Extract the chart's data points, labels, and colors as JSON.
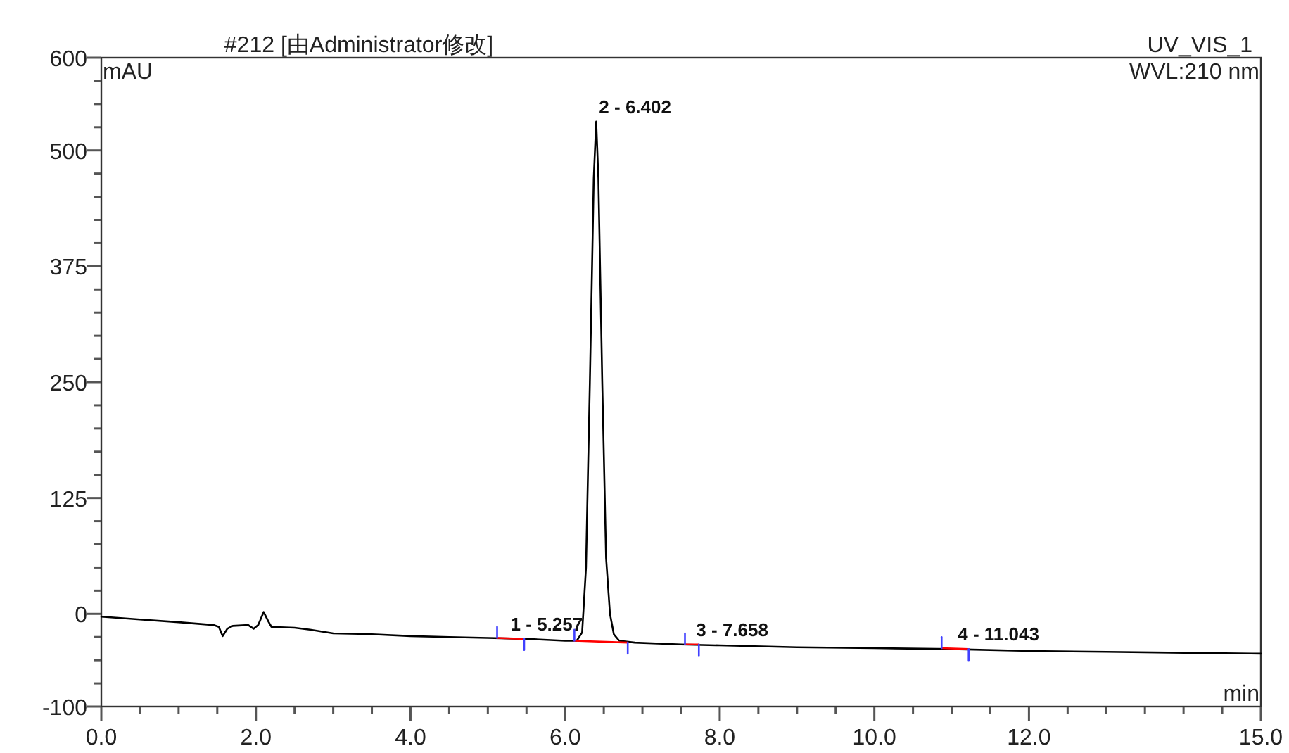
{
  "chart_data": {
    "type": "line",
    "title": "#212 [由Administrator修改]",
    "xlabel": "min",
    "ylabel": "mAU",
    "annotations": [
      "UV_VIS_1",
      "WVL:210 nm",
      {
        "text": "1 - 5.257",
        "x": 5.257,
        "y": -27
      },
      {
        "text": "2 - 6.402",
        "x": 6.402,
        "y": 531
      },
      {
        "text": "3 - 7.658",
        "x": 7.658,
        "y": -33
      },
      {
        "text": "4 - 11.043",
        "x": 11.043,
        "y": -38
      }
    ],
    "xlim": [
      0,
      15
    ],
    "ylim": [
      -100,
      600
    ],
    "xticks": [
      {
        "value": 0,
        "label": "0.0"
      },
      {
        "value": 0.5,
        "label": null
      },
      {
        "value": 1,
        "label": null
      },
      {
        "value": 1.5,
        "label": null
      },
      {
        "value": 2,
        "label": "2.0"
      },
      {
        "value": 2.5,
        "label": null
      },
      {
        "value": 3,
        "label": null
      },
      {
        "value": 3.5,
        "label": null
      },
      {
        "value": 4,
        "label": "4.0"
      },
      {
        "value": 4.5,
        "label": null
      },
      {
        "value": 5,
        "label": null
      },
      {
        "value": 5.5,
        "label": null
      },
      {
        "value": 6,
        "label": "6.0"
      },
      {
        "value": 6.5,
        "label": null
      },
      {
        "value": 7,
        "label": null
      },
      {
        "value": 7.5,
        "label": null
      },
      {
        "value": 8,
        "label": "8.0"
      },
      {
        "value": 8.5,
        "label": null
      },
      {
        "value": 9,
        "label": null
      },
      {
        "value": 9.5,
        "label": null
      },
      {
        "value": 10,
        "label": "10.0"
      },
      {
        "value": 10.5,
        "label": null
      },
      {
        "value": 11,
        "label": null
      },
      {
        "value": 11.5,
        "label": null
      },
      {
        "value": 12,
        "label": "12.0"
      },
      {
        "value": 12.5,
        "label": null
      },
      {
        "value": 13,
        "label": null
      },
      {
        "value": 13.5,
        "label": null
      },
      {
        "value": 14,
        "label": null
      },
      {
        "value": 14.5,
        "label": null
      },
      {
        "value": 15,
        "label": "15.0"
      }
    ],
    "yticks": [
      -100,
      {
        "value": -75,
        "label": null
      },
      {
        "value": -50,
        "label": null
      },
      {
        "value": -25,
        "label": null
      },
      0,
      {
        "value": 25,
        "label": null
      },
      {
        "value": 50,
        "label": null
      },
      {
        "value": 75,
        "label": null
      },
      {
        "value": 100,
        "label": null
      },
      125,
      {
        "value": 150,
        "label": null
      },
      {
        "value": 175,
        "label": null
      },
      {
        "value": 200,
        "label": null
      },
      {
        "value": 225,
        "label": null
      },
      250,
      {
        "value": 275,
        "label": null
      },
      {
        "value": 300,
        "label": null
      },
      {
        "value": 325,
        "label": null
      },
      {
        "value": 350,
        "label": null
      },
      375,
      {
        "value": 400,
        "label": null
      },
      {
        "value": 425,
        "label": null
      },
      {
        "value": 450,
        "label": null
      },
      {
        "value": 475,
        "label": null
      },
      500,
      {
        "value": 525,
        "label": null
      },
      {
        "value": 550,
        "label": null
      },
      {
        "value": 575,
        "label": null
      },
      600
    ],
    "series": [
      {
        "color": "#000000",
        "x": [
          0,
          0.5,
          1.0,
          1.45,
          1.52,
          1.57,
          1.63,
          1.7,
          1.9,
          1.97,
          2.03,
          2.1,
          2.16,
          2.2,
          2.5,
          2.7,
          3.0,
          3.5,
          4.0,
          4.5,
          5.0,
          5.5,
          6.0,
          6.15,
          6.22,
          6.27,
          6.32,
          6.37,
          6.402,
          6.43,
          6.48,
          6.53,
          6.58,
          6.63,
          6.7,
          6.9,
          7.5,
          8,
          9,
          10,
          11,
          12,
          13,
          14,
          15
        ],
        "values": [
          -3,
          -6,
          -9,
          -12,
          -14,
          -24,
          -16,
          -13,
          -12,
          -16,
          -12,
          2,
          -8,
          -14,
          -15,
          -17,
          -21,
          -22,
          -24,
          -25,
          -26,
          -27,
          -29,
          -29,
          -20,
          50,
          250,
          470,
          531,
          470,
          250,
          60,
          0,
          -22,
          -29,
          -31,
          -33,
          -34,
          -36,
          -37,
          -38,
          -40,
          -41,
          -42,
          -43
        ]
      },
      {
        "color": "#ff0000",
        "x": [
          5.12,
          5.47
        ],
        "values": [
          -26,
          -27
        ]
      },
      {
        "color": "#ff0000",
        "x": [
          6.12,
          6.81
        ],
        "values": [
          -29,
          -31
        ]
      },
      {
        "color": "#ff0000",
        "x": [
          7.55,
          7.73
        ],
        "values": [
          -33,
          -33
        ]
      },
      {
        "color": "#ff0000",
        "x": [
          10.87,
          11.22
        ],
        "values": [
          -37,
          -38
        ]
      },
      {
        "color": "#4040ff",
        "x": [
          5.12,
          5.12
        ],
        "values": [
          -26,
          -14
        ]
      },
      {
        "color": "#4040ff",
        "x": [
          5.47,
          5.47
        ],
        "values": [
          -27,
          -39
        ]
      },
      {
        "color": "#4040ff",
        "x": [
          6.12,
          6.12
        ],
        "values": [
          -29,
          -17
        ]
      },
      {
        "color": "#4040ff",
        "x": [
          6.81,
          6.81
        ],
        "values": [
          -31,
          -43
        ]
      },
      {
        "color": "#4040ff",
        "x": [
          7.55,
          7.55
        ],
        "values": [
          -33,
          -21
        ]
      },
      {
        "color": "#4040ff",
        "x": [
          7.73,
          7.73
        ],
        "values": [
          -33,
          -45
        ]
      },
      {
        "color": "#4040ff",
        "x": [
          10.87,
          10.87
        ],
        "values": [
          -37,
          -25
        ]
      },
      {
        "color": "#4040ff",
        "x": [
          11.22,
          11.22
        ],
        "values": [
          -38,
          -50
        ]
      }
    ]
  }
}
